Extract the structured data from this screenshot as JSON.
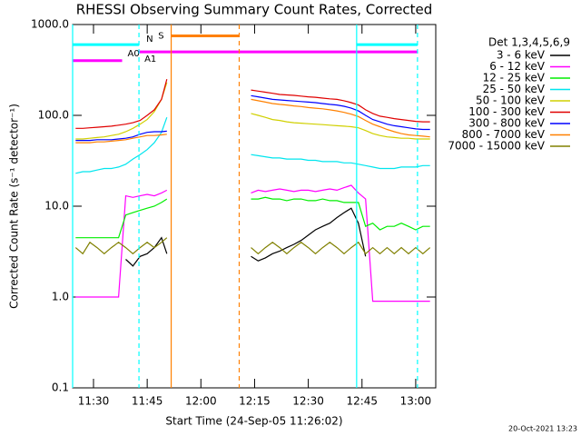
{
  "chart_data": {
    "type": "line",
    "title": "RHESSI Observing Summary Count Rates, Corrected",
    "xlabel": "Start Time (24-Sep-05 11:26:02)",
    "ylabel": "Corrected Count Rate (s⁻¹ detector⁻¹)",
    "legend_title": "Det 1,3,4,5,6,9",
    "footer": "20-Oct-2021 13:23",
    "yscale": "log",
    "legend": "outside-right",
    "xlim": [
      684.17,
      785.6
    ],
    "ylim": [
      0.1,
      1000
    ],
    "yticks": [
      {
        "value": 1000,
        "label": "1000.0"
      },
      {
        "value": 100,
        "label": "100.0"
      },
      {
        "value": 10,
        "label": "10.0"
      },
      {
        "value": 1,
        "label": "1.0"
      },
      0.1
    ],
    "xticks": [
      {
        "value": 690,
        "label": "11:30"
      },
      {
        "value": 705,
        "label": "11:45"
      },
      {
        "value": 720,
        "label": "12:00"
      },
      {
        "value": 735,
        "label": "12:15"
      },
      {
        "value": 750,
        "label": "12:30"
      },
      {
        "value": 765,
        "label": "12:45"
      },
      {
        "value": 780,
        "label": "13:00"
      }
    ],
    "x": [
      685,
      687,
      689,
      691,
      693,
      695,
      697,
      699,
      701,
      703,
      705,
      707,
      709,
      710.5,
      722,
      734,
      736,
      738,
      740,
      742,
      744,
      746,
      748,
      750,
      752,
      754,
      756,
      758,
      760,
      762,
      764,
      766,
      768,
      770,
      772,
      774,
      776,
      778,
      780,
      782,
      784
    ],
    "series": [
      {
        "name": "3 - 6 keV",
        "color": "#000000",
        "values": [
          null,
          null,
          null,
          null,
          null,
          null,
          null,
          2.6,
          2.2,
          2.8,
          3.0,
          3.5,
          4.5,
          3.0,
          null,
          2.8,
          2.5,
          2.7,
          3.0,
          3.2,
          3.5,
          3.8,
          4.2,
          4.8,
          5.5,
          6.0,
          6.5,
          7.5,
          8.5,
          9.5,
          6.5,
          2.8,
          null,
          null,
          null,
          null,
          null,
          null,
          null,
          null,
          null
        ]
      },
      {
        "name": "6 - 12 keV",
        "color": "#ff00ff",
        "values": [
          1.0,
          1.0,
          1.0,
          1.0,
          1.0,
          1.0,
          1.0,
          13,
          12.5,
          13,
          13.5,
          13,
          14,
          15,
          null,
          14,
          15,
          14.5,
          15,
          15.5,
          15,
          14.5,
          15,
          15,
          14.5,
          15,
          15.5,
          15,
          16,
          17,
          14,
          12,
          0.9,
          0.9,
          0.9,
          0.9,
          0.9,
          0.9,
          0.9,
          0.9,
          0.9
        ]
      },
      {
        "name": "12 - 25 keV",
        "color": "#00ee00",
        "values": [
          4.5,
          4.5,
          4.5,
          4.5,
          4.5,
          4.5,
          4.5,
          8,
          8.5,
          9,
          9.5,
          10,
          11,
          12,
          null,
          12,
          12,
          12.5,
          12,
          12,
          11.5,
          12,
          12,
          11.5,
          11.5,
          12,
          11.5,
          11.5,
          11,
          11,
          11,
          6,
          6.5,
          5.5,
          6,
          6,
          6.5,
          6,
          5.5,
          6,
          6
        ]
      },
      {
        "name": "25 - 50 keV",
        "color": "#00e5ee",
        "values": [
          23,
          24,
          24,
          25,
          26,
          26,
          27,
          29,
          33,
          37,
          42,
          50,
          65,
          95,
          null,
          37,
          36,
          35,
          34,
          34,
          33,
          33,
          33,
          32,
          32,
          31,
          31,
          31,
          30,
          30,
          29,
          28,
          27,
          26,
          26,
          26,
          27,
          27,
          27,
          28,
          28
        ]
      },
      {
        "name": "50 - 100 keV",
        "color": "#d0d000",
        "values": [
          55,
          55,
          56,
          57,
          58,
          60,
          62,
          66,
          72,
          80,
          90,
          110,
          150,
          230,
          null,
          105,
          100,
          95,
          90,
          88,
          85,
          83,
          82,
          81,
          80,
          79,
          78,
          77,
          76,
          75,
          73,
          68,
          63,
          60,
          58,
          57,
          56,
          56,
          55,
          55,
          55
        ]
      },
      {
        "name": "100 - 300 keV",
        "color": "#e00000",
        "values": [
          72,
          72,
          73,
          74,
          75,
          76,
          78,
          80,
          83,
          88,
          100,
          115,
          150,
          250,
          null,
          190,
          185,
          180,
          175,
          170,
          168,
          166,
          163,
          160,
          158,
          155,
          152,
          150,
          145,
          138,
          130,
          115,
          105,
          98,
          95,
          92,
          90,
          88,
          86,
          85,
          85
        ]
      },
      {
        "name": "300 - 800 keV",
        "color": "#0000ff",
        "values": [
          53,
          53,
          53,
          54,
          54,
          54,
          55,
          56,
          58,
          62,
          65,
          66,
          66,
          67,
          null,
          165,
          160,
          155,
          150,
          148,
          146,
          144,
          142,
          140,
          138,
          135,
          132,
          130,
          126,
          120,
          112,
          100,
          90,
          85,
          80,
          77,
          75,
          73,
          71,
          70,
          70
        ]
      },
      {
        "name": "800 - 7000 keV",
        "color": "#ff8000",
        "values": [
          50,
          50,
          50,
          51,
          51,
          52,
          53,
          54,
          56,
          58,
          60,
          60,
          61,
          62,
          null,
          150,
          145,
          140,
          135,
          132,
          130,
          127,
          125,
          122,
          120,
          118,
          115,
          112,
          108,
          103,
          97,
          88,
          80,
          75,
          70,
          66,
          63,
          61,
          60,
          59,
          58
        ]
      },
      {
        "name": "7000 - 15000 keV",
        "color": "#808000",
        "values": [
          3.5,
          3.0,
          4.0,
          3.5,
          3.0,
          3.5,
          4.0,
          3.5,
          3.0,
          3.5,
          4.0,
          3.5,
          4.0,
          4.5,
          null,
          3.5,
          3.0,
          3.5,
          4.0,
          3.5,
          3.0,
          3.5,
          4.0,
          3.5,
          3.0,
          3.5,
          4.0,
          3.5,
          3.0,
          3.5,
          4.0,
          3.0,
          3.5,
          3.0,
          3.5,
          3.0,
          3.5,
          3.0,
          3.5,
          3.0,
          3.5
        ]
      }
    ],
    "flags": [
      {
        "label": "N",
        "color": "#00ffff",
        "x": [
          684.17,
          702.7
        ],
        "y": 600
      },
      {
        "label": "A0",
        "color": "#ff00ff",
        "x": [
          684.17,
          698
        ],
        "y": 400
      },
      {
        "label": "A1",
        "color": "#ff00ff",
        "x": [
          702.7,
          780.5
        ],
        "y": 500
      },
      {
        "label": "S",
        "color": "#ff8000",
        "x": [
          711.7,
          730.7
        ],
        "y": 750
      },
      {
        "color": "#00ffff",
        "x": [
          763.5,
          780.5
        ],
        "y": 600
      }
    ],
    "markers": [
      {
        "x": 684.17,
        "color": "#00ffff",
        "dashed": false
      },
      {
        "x": 702.7,
        "color": "#00ffff",
        "dashed": true
      },
      {
        "x": 711.7,
        "color": "#ff8000",
        "dashed": false
      },
      {
        "x": 730.7,
        "color": "#ff8000",
        "dashed": true
      },
      {
        "x": 763.5,
        "color": "#00ffff",
        "dashed": false
      },
      {
        "x": 780.5,
        "color": "#00ffff",
        "dashed": true
      }
    ]
  }
}
